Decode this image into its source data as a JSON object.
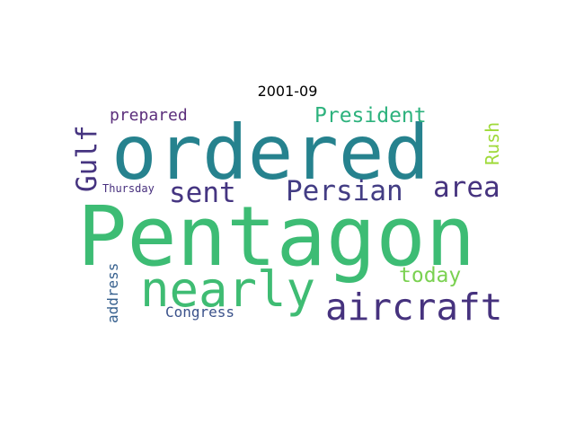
{
  "title": "2001-09",
  "words": {
    "pentagon": {
      "text": "Pentagon",
      "color": "#3dbc74"
    },
    "ordered": {
      "text": "ordered",
      "color": "#26828e"
    },
    "nearly": {
      "text": "nearly",
      "color": "#3fbc73"
    },
    "aircraft": {
      "text": "aircraft",
      "color": "#46327e"
    },
    "persian": {
      "text": "Persian",
      "color": "#433d84"
    },
    "sent": {
      "text": "sent",
      "color": "#453581"
    },
    "area": {
      "text": "area",
      "color": "#46337f"
    },
    "gulf": {
      "text": "Gulf",
      "color": "#463480"
    },
    "president": {
      "text": "President",
      "color": "#2db27d"
    },
    "prepared": {
      "text": "prepared",
      "color": "#5c2f7c"
    },
    "rush": {
      "text": "Rush",
      "color": "#9fda3a"
    },
    "today": {
      "text": "today",
      "color": "#7ad151"
    },
    "congress": {
      "text": "Congress",
      "color": "#3b528b"
    },
    "address": {
      "text": "address",
      "color": "#355f8d"
    },
    "thursday": {
      "text": "Thursday",
      "color": "#472f7d"
    }
  }
}
